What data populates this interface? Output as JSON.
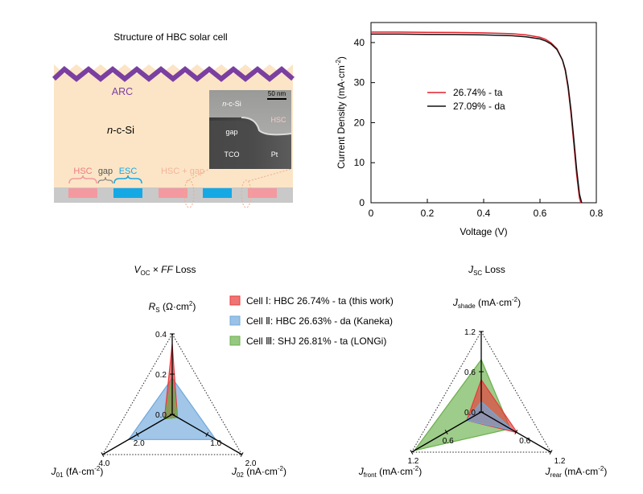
{
  "structure": {
    "title": "Structure of HBC solar cell",
    "arc_label": "ARC",
    "si_label_italic": "n",
    "si_label_rest": "-c-Si",
    "hsc": "HSC",
    "gap": "gap",
    "esc": "ESC",
    "hsc_gap": "HSC + gap",
    "colors": {
      "bulk": "#fbe5c6",
      "arc": "#7b3fa0",
      "hsc": "#f4999f",
      "esc": "#14a9e4",
      "gray": "#c9c9c9"
    },
    "sem": {
      "scale_bar": "50 nm",
      "nsi_italic": "n",
      "nsi_rest": "-c-Si",
      "hsc": "HSC",
      "gap": "gap",
      "tco": "TCO",
      "pt": "Pt"
    }
  },
  "jv_chart": {
    "chart_data": {
      "type": "line",
      "xlabel": "Voltage (V)",
      "ylabel_main": "Current Density (mA·cm",
      "ylabel_sup": "-2",
      "ylabel_end": ")",
      "xlim": [
        0,
        0.8
      ],
      "ylim": [
        0,
        45
      ],
      "xticks": [
        "0",
        "0.2",
        "0.4",
        "0.6",
        "0.8"
      ],
      "yticks": [
        "0",
        "10",
        "20",
        "30",
        "40"
      ],
      "series": [
        {
          "name": "26.74% - ta",
          "color": "#e0202a",
          "x": [
            0,
            0.1,
            0.2,
            0.3,
            0.4,
            0.5,
            0.55,
            0.6,
            0.62,
            0.64,
            0.66,
            0.68,
            0.69,
            0.7,
            0.71,
            0.72,
            0.73,
            0.74,
            0.745
          ],
          "y": [
            42.6,
            42.6,
            42.55,
            42.5,
            42.4,
            42.2,
            41.9,
            41.3,
            40.8,
            39.9,
            38.5,
            35.6,
            32.9,
            28.5,
            22.3,
            14.8,
            7.1,
            1.2,
            0
          ]
        },
        {
          "name": "27.09% - da",
          "color": "#111111",
          "x": [
            0,
            0.1,
            0.2,
            0.3,
            0.4,
            0.5,
            0.55,
            0.6,
            0.62,
            0.64,
            0.66,
            0.68,
            0.69,
            0.7,
            0.71,
            0.72,
            0.73,
            0.74,
            0.748
          ],
          "y": [
            42.1,
            42.1,
            42.05,
            42.0,
            41.9,
            41.7,
            41.45,
            40.9,
            40.4,
            39.6,
            38.3,
            35.6,
            33.2,
            29.1,
            23.2,
            16.0,
            8.4,
            2.2,
            0
          ]
        }
      ]
    }
  },
  "radar_legend": [
    {
      "label": "Cell Ⅰ: HBC 26.74% - ta (this work)",
      "color": "#e83b3b"
    },
    {
      "label": "Cell Ⅱ: HBC 26.63% - da (Kaneka)",
      "color": "#6fa8dc"
    },
    {
      "label": "Cell Ⅲ: SHJ 26.81% - ta (LONGi)",
      "color": "#6ab04c"
    }
  ],
  "radar_voc": {
    "chart_data": {
      "type": "radar",
      "title_v": "V",
      "title_sub": "OC",
      "title_x": " × ",
      "title_ff": "FF",
      "title_end": " Loss",
      "axes": [
        {
          "name": "Rs",
          "label_main": "R",
          "label_sub": "S",
          "label_rest": " (Ω·cm",
          "label_sup": "2",
          "label_end": ")",
          "max": 0.4,
          "ticks": [
            0.0,
            0.2,
            0.4
          ],
          "tick_labels": [
            "0.0",
            "0.2",
            "0.4"
          ]
        },
        {
          "name": "J02",
          "label_main": "J",
          "label_sub": "02",
          "label_rest": " (nA·cm",
          "label_sup": "-2",
          "label_end": ")",
          "max": 2.0,
          "ticks": [
            1.0,
            2.0
          ],
          "tick_labels": [
            "1.0",
            "2.0"
          ]
        },
        {
          "name": "J01",
          "label_main": "J",
          "label_sub": "01",
          "label_rest": " (fA·cm",
          "label_sup": "-2",
          "label_end": ")",
          "max": 4.0,
          "ticks": [
            2.0,
            4.0
          ],
          "tick_labels": [
            "2.0",
            "4.0"
          ]
        }
      ],
      "series": [
        {
          "name": "Cell Ⅱ",
          "color": "#6fa8dc",
          "values": [
            0.18,
            1.25,
            2.5
          ]
        },
        {
          "name": "Cell Ⅰ",
          "color": "#e83b3b",
          "values": [
            0.35,
            0.15,
            0.45
          ]
        },
        {
          "name": "Cell Ⅲ",
          "color": "#6ab04c",
          "values": [
            0.18,
            0.15,
            0.45
          ]
        }
      ]
    }
  },
  "radar_jsc": {
    "chart_data": {
      "type": "radar",
      "title_j": "J",
      "title_sub": "SC",
      "title_end": " Loss",
      "axes": [
        {
          "name": "Jshade",
          "label_main": "J",
          "label_sub": "shade",
          "label_rest": " (mA·cm",
          "label_sup": "-2",
          "label_end": ")",
          "max": 1.2,
          "ticks": [
            0.0,
            0.6,
            1.2
          ],
          "tick_labels": [
            "0.0",
            "0.6",
            "1.2"
          ]
        },
        {
          "name": "Jrear",
          "label_main": "J",
          "label_sub": "rear",
          "label_rest": " (mA·cm",
          "label_sup": "-2",
          "label_end": ")",
          "max": 1.2,
          "ticks": [
            0.6,
            1.2
          ],
          "tick_labels": [
            "0.6",
            "1.2"
          ]
        },
        {
          "name": "Jfront",
          "label_main": "J",
          "label_sub": "front",
          "label_rest": " (mA·cm",
          "label_sup": "-2",
          "label_end": ")",
          "max": 1.2,
          "ticks": [
            0.6,
            1.2
          ],
          "tick_labels": [
            "0.6",
            "1.2"
          ]
        }
      ],
      "series": [
        {
          "name": "Cell Ⅲ",
          "color": "#6ab04c",
          "values": [
            0.78,
            0.5,
            1.15
          ]
        },
        {
          "name": "Cell Ⅰ",
          "color": "#e83b3b",
          "values": [
            0.48,
            0.62,
            0.25
          ]
        },
        {
          "name": "Cell Ⅱ",
          "color": "#6fa8dc",
          "values": [
            0.15,
            0.55,
            0.25
          ]
        }
      ]
    }
  }
}
